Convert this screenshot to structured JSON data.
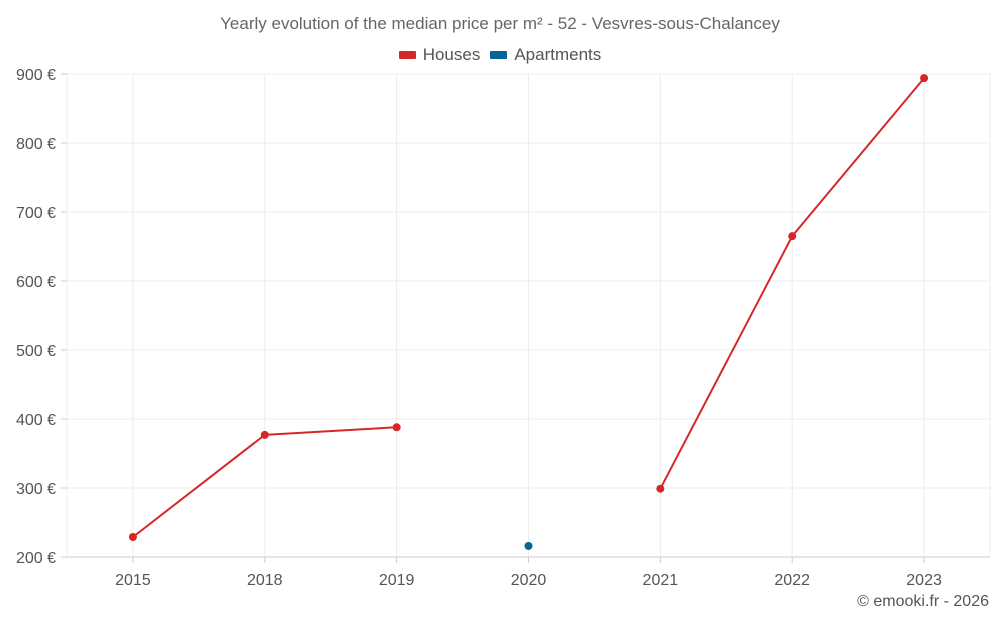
{
  "chart_data": {
    "type": "line",
    "title": "Yearly evolution of the median price per m² - 52 - Vesvres-sous-Chalancey",
    "categories": [
      "2015",
      "2018",
      "2019",
      "2020",
      "2021",
      "2022",
      "2023"
    ],
    "series": [
      {
        "name": "Houses",
        "color": "#d62728",
        "values": [
          229,
          377,
          388,
          null,
          299,
          665,
          894
        ]
      },
      {
        "name": "Apartments",
        "color": "#0a6396",
        "values": [
          null,
          null,
          null,
          216,
          null,
          null,
          null
        ]
      }
    ],
    "y_ticks": [
      200,
      300,
      400,
      500,
      600,
      700,
      800,
      900
    ],
    "y_tick_labels": [
      "200 €",
      "300 €",
      "400 €",
      "500 €",
      "600 €",
      "700 €",
      "800 €",
      "900 €"
    ],
    "ylim": [
      200,
      900
    ],
    "xlabel": "",
    "ylabel": "",
    "grid": true,
    "legend_position": "top-center"
  },
  "footer": {
    "credit": "© emooki.fr - 2026"
  }
}
